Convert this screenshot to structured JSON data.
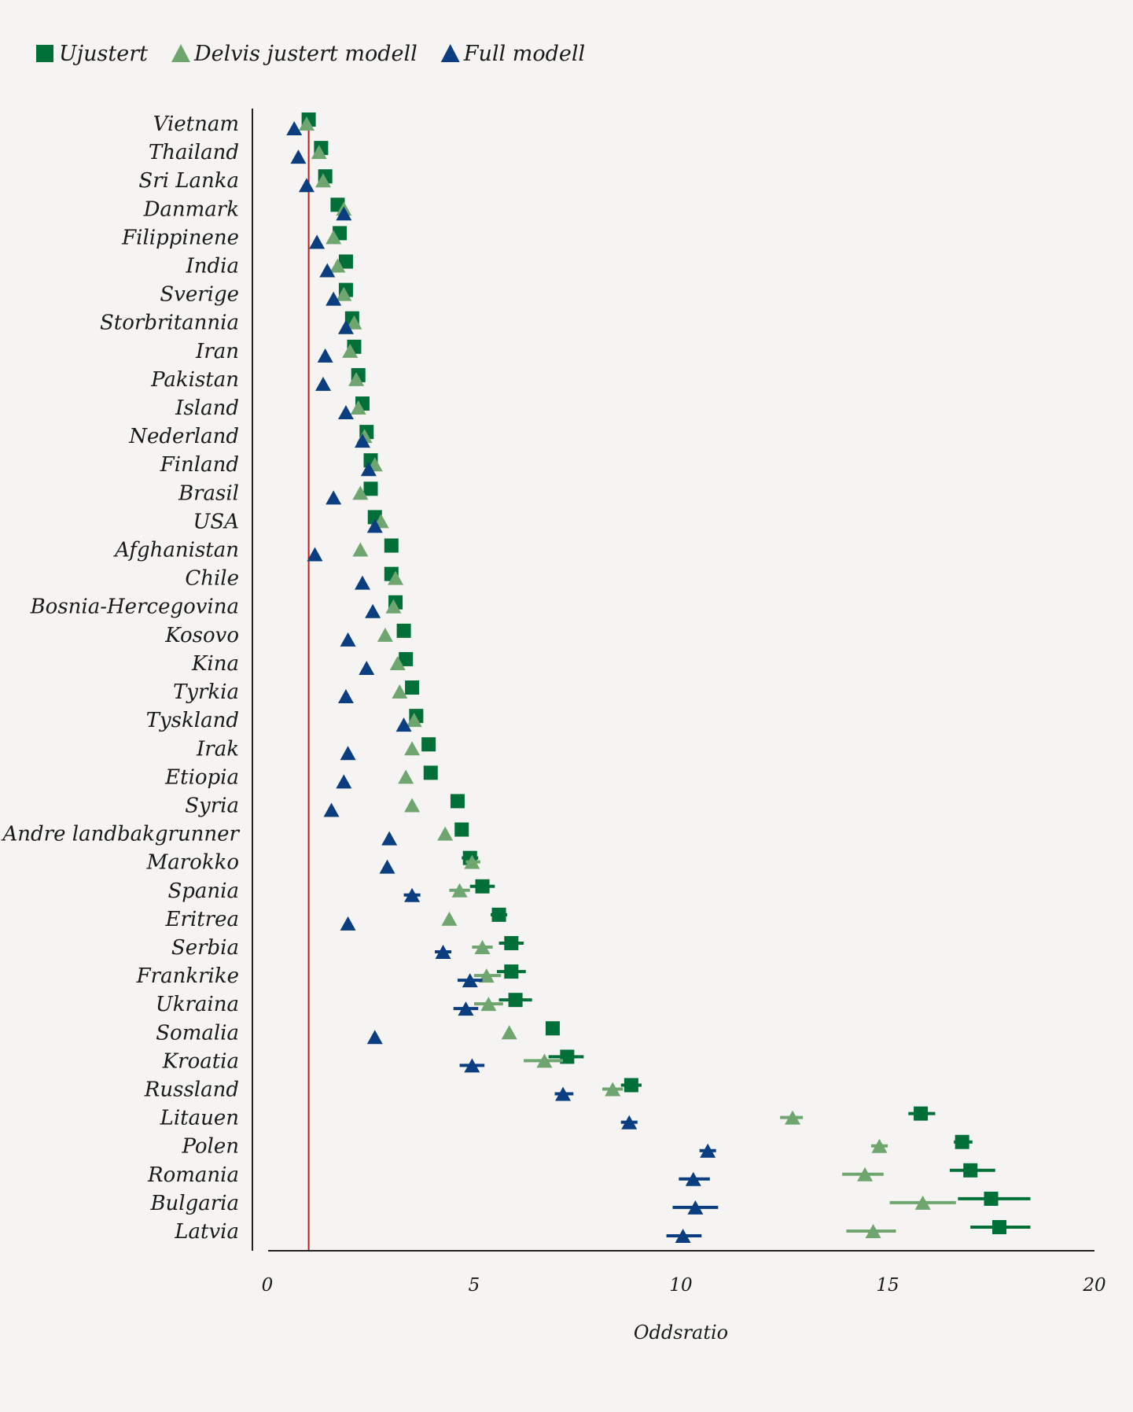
{
  "chart_data": {
    "type": "scatter",
    "orientation": "horizontal",
    "xlabel": "Oddsratio",
    "xlim": [
      0,
      20
    ],
    "xticks": [
      0,
      5,
      10,
      15,
      20
    ],
    "reference_line": 1,
    "legend_position": "top-left",
    "colors": {
      "Ujustert": "#007038",
      "Delvis justert modell": "#6fa66f",
      "Full modell": "#0b3e80",
      "reference": "#c8191e"
    },
    "categories": [
      "Vietnam",
      "Thailand",
      "Sri Lanka",
      "Danmark",
      "Filippinene",
      "India",
      "Sverige",
      "Storbritannia",
      "Iran",
      "Pakistan",
      "Island",
      "Nederland",
      "Finland",
      "Brasil",
      "USA",
      "Afghanistan",
      "Chile",
      "Bosnia-Hercegovina",
      "Kosovo",
      "Kina",
      "Tyrkia",
      "Tyskland",
      "Irak",
      "Etiopia",
      "Syria",
      "Andre landbakgrunner",
      "Marokko",
      "Spania",
      "Eritrea",
      "Serbia",
      "Frankrike",
      "Ukraina",
      "Somalia",
      "Kroatia",
      "Russland",
      "Litauen",
      "Polen",
      "Romania",
      "Bulgaria",
      "Latvia"
    ],
    "series": [
      {
        "name": "Ujustert",
        "marker": "square",
        "values": [
          1.0,
          1.3,
          1.4,
          1.7,
          1.75,
          1.9,
          1.9,
          2.05,
          2.1,
          2.2,
          2.3,
          2.4,
          2.5,
          2.5,
          2.6,
          3.0,
          3.0,
          3.1,
          3.3,
          3.35,
          3.5,
          3.6,
          3.9,
          3.95,
          4.6,
          4.7,
          4.9,
          5.2,
          5.6,
          5.9,
          5.9,
          6.0,
          6.9,
          7.25,
          8.8,
          15.8,
          16.8,
          17.0,
          17.5,
          17.7
        ],
        "ci": [
          null,
          null,
          null,
          null,
          null,
          null,
          null,
          null,
          null,
          null,
          null,
          null,
          null,
          null,
          null,
          null,
          null,
          null,
          null,
          null,
          null,
          null,
          null,
          null,
          null,
          null,
          [
            4.7,
            5.1
          ],
          [
            4.9,
            5.5
          ],
          [
            5.4,
            5.8
          ],
          [
            5.6,
            6.2
          ],
          [
            5.55,
            6.25
          ],
          [
            5.6,
            6.4
          ],
          null,
          [
            6.8,
            7.65
          ],
          [
            8.55,
            9.05
          ],
          [
            15.5,
            16.15
          ],
          [
            16.6,
            17.05
          ],
          [
            16.5,
            17.6
          ],
          [
            16.7,
            18.45
          ],
          [
            17.0,
            18.45
          ]
        ]
      },
      {
        "name": "Delvis justert modell",
        "marker": "triangle",
        "values": [
          0.95,
          1.25,
          1.35,
          1.85,
          1.6,
          1.7,
          1.85,
          2.1,
          2.0,
          2.15,
          2.2,
          2.35,
          2.6,
          2.25,
          2.75,
          2.25,
          3.1,
          3.05,
          2.85,
          3.15,
          3.2,
          3.55,
          3.5,
          3.35,
          3.5,
          4.3,
          4.95,
          4.65,
          4.4,
          5.2,
          5.3,
          5.35,
          5.85,
          6.7,
          8.35,
          12.7,
          14.8,
          14.45,
          15.85,
          14.65
        ],
        "ci": [
          null,
          null,
          null,
          null,
          null,
          null,
          null,
          null,
          null,
          null,
          null,
          null,
          null,
          null,
          null,
          null,
          null,
          null,
          null,
          null,
          null,
          null,
          null,
          null,
          null,
          null,
          [
            4.8,
            5.15
          ],
          [
            4.4,
            4.9
          ],
          null,
          [
            4.95,
            5.45
          ],
          [
            5.0,
            5.65
          ],
          [
            5.0,
            5.7
          ],
          null,
          [
            6.2,
            7.15
          ],
          [
            8.1,
            8.6
          ],
          [
            12.4,
            12.95
          ],
          [
            14.6,
            15.0
          ],
          [
            13.9,
            14.9
          ],
          [
            15.05,
            16.65
          ],
          [
            14.0,
            15.2
          ]
        ]
      },
      {
        "name": "Full modell",
        "marker": "triangle",
        "values": [
          0.65,
          0.75,
          0.95,
          1.85,
          1.2,
          1.45,
          1.6,
          1.9,
          1.4,
          1.35,
          1.9,
          2.3,
          2.45,
          1.6,
          2.6,
          1.15,
          2.3,
          2.55,
          1.95,
          2.4,
          1.9,
          3.3,
          1.95,
          1.85,
          1.55,
          2.95,
          2.9,
          3.5,
          1.95,
          4.25,
          4.9,
          4.8,
          2.6,
          4.95,
          7.15,
          8.75,
          10.65,
          10.3,
          10.35,
          10.05
        ],
        "ci": [
          null,
          null,
          null,
          null,
          null,
          null,
          null,
          null,
          null,
          null,
          null,
          null,
          null,
          null,
          null,
          null,
          null,
          null,
          null,
          null,
          null,
          null,
          null,
          null,
          null,
          null,
          null,
          [
            3.3,
            3.7
          ],
          null,
          [
            4.05,
            4.45
          ],
          [
            4.6,
            5.2
          ],
          [
            4.5,
            5.1
          ],
          null,
          [
            4.65,
            5.25
          ],
          [
            6.95,
            7.4
          ],
          [
            8.55,
            8.95
          ],
          [
            10.45,
            10.85
          ],
          [
            9.95,
            10.7
          ],
          [
            9.8,
            10.9
          ],
          [
            9.65,
            10.5
          ]
        ]
      }
    ]
  }
}
